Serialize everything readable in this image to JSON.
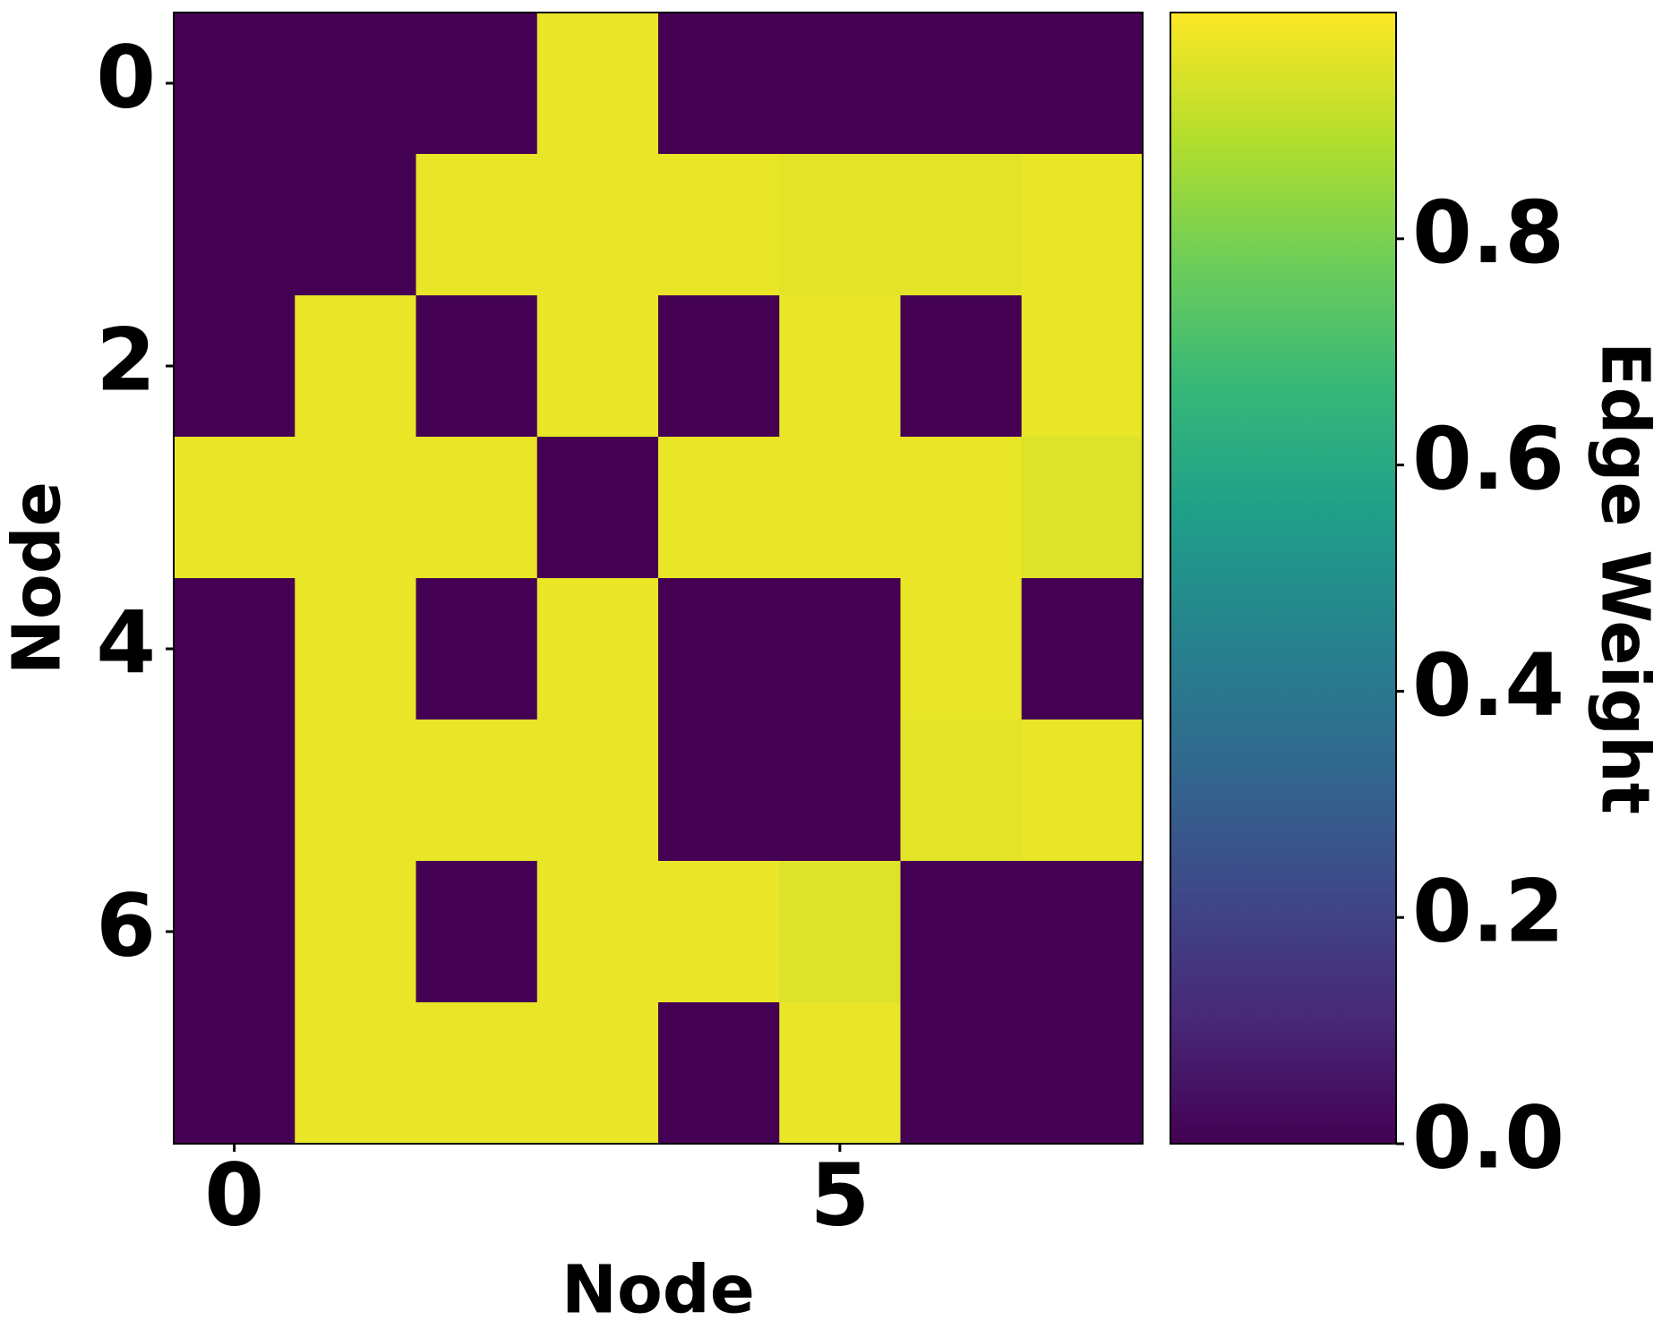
{
  "chart_data": {
    "type": "heatmap",
    "x_label": "Node",
    "y_label": "Node",
    "colorbar_label": "Edge Weight",
    "colormap": "viridis",
    "values": [
      [
        0,
        0,
        0,
        0.97,
        0,
        0,
        0,
        0
      ],
      [
        0,
        0,
        0.97,
        0.97,
        0.97,
        0.96,
        0.96,
        0.97
      ],
      [
        0,
        0.97,
        0,
        0.97,
        0,
        0.97,
        0,
        0.97
      ],
      [
        0.97,
        0.97,
        0.97,
        0,
        0.97,
        0.97,
        0.97,
        0.95
      ],
      [
        0,
        0.97,
        0,
        0.97,
        0,
        0,
        0.97,
        0
      ],
      [
        0,
        0.97,
        0.97,
        0.97,
        0,
        0,
        0.96,
        0.97
      ],
      [
        0,
        0.97,
        0,
        0.97,
        0.97,
        0.95,
        0,
        0
      ],
      [
        0,
        0.97,
        0.97,
        0.97,
        0,
        0.97,
        0,
        0
      ]
    ],
    "xticks": [
      0,
      5
    ],
    "yticks": [
      0,
      2,
      4,
      6
    ],
    "clim": [
      0,
      1
    ],
    "cticks": [
      {
        "value": 0,
        "label": "0.0"
      },
      0.2,
      0.4,
      0.6,
      0.8
    ]
  }
}
